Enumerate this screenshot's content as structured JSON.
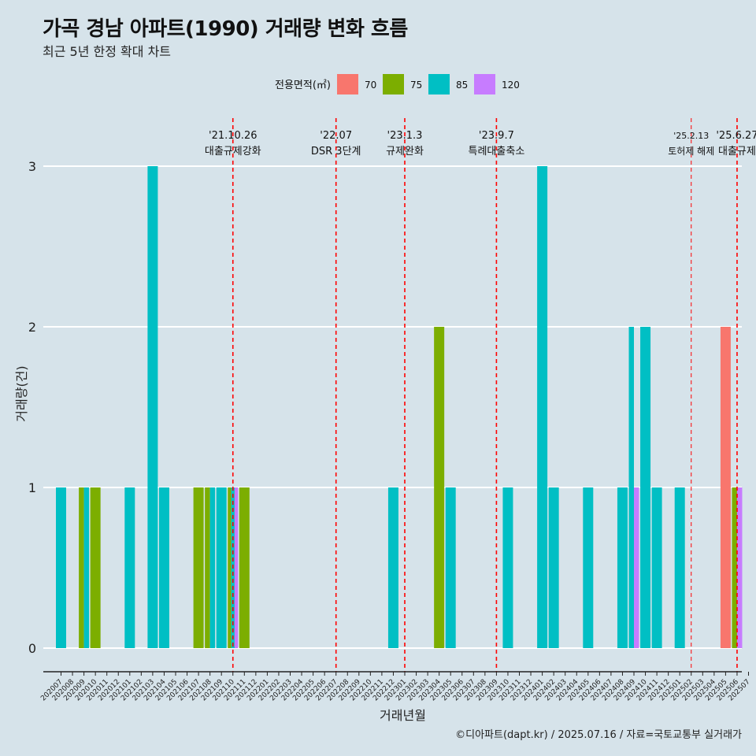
{
  "header": {
    "title": "가곡 경남 아파트(1990) 거래량 변화 흐름",
    "subtitle": "최근 5년 한정 확대 차트"
  },
  "footer": {
    "caption": "©디아파트(dapt.kr) / 2025.07.16 / 자료=국토교통부 실거래가"
  },
  "chart_data": {
    "type": "bar",
    "xlabel": "거래년월",
    "ylabel": "거래량(건)",
    "ylim": [
      0,
      3
    ],
    "yticks": [
      0,
      1,
      2,
      3
    ],
    "grid": true,
    "legend_position": "top",
    "legend": {
      "title": "전용면적(㎡)",
      "entries": [
        {
          "label": "70",
          "color": "#f8766d"
        },
        {
          "label": "75",
          "color": "#7cae00"
        },
        {
          "label": "85",
          "color": "#00bfc4"
        },
        {
          "label": "120",
          "color": "#c77cff"
        }
      ]
    },
    "categories": [
      "202007",
      "202008",
      "202009",
      "202010",
      "202011",
      "202012",
      "202101",
      "202102",
      "202103",
      "202104",
      "202105",
      "202106",
      "202107",
      "202108",
      "202109",
      "202110",
      "202111",
      "202112",
      "202201",
      "202202",
      "202203",
      "202204",
      "202205",
      "202206",
      "202207",
      "202208",
      "202209",
      "202210",
      "202211",
      "202212",
      "202301",
      "202302",
      "202303",
      "202304",
      "202305",
      "202306",
      "202307",
      "202308",
      "202309",
      "202310",
      "202311",
      "202312",
      "202401",
      "202402",
      "202403",
      "202404",
      "202405",
      "202406",
      "202407",
      "202408",
      "202409",
      "202410",
      "202411",
      "202412",
      "202501",
      "202502",
      "202503",
      "202504",
      "202505",
      "202506",
      "202507"
    ],
    "series": [
      {
        "name": "70",
        "values": [
          0,
          0,
          0,
          0,
          0,
          0,
          0,
          0,
          0,
          0,
          0,
          0,
          0,
          0,
          0,
          0,
          0,
          0,
          0,
          0,
          0,
          0,
          0,
          0,
          0,
          0,
          0,
          0,
          0,
          0,
          0,
          0,
          0,
          0,
          0,
          0,
          0,
          0,
          0,
          0,
          0,
          0,
          0,
          0,
          0,
          0,
          0,
          0,
          0,
          0,
          0,
          0,
          0,
          0,
          0,
          0,
          0,
          0,
          2,
          0,
          0
        ]
      },
      {
        "name": "75",
        "values": [
          0,
          0,
          1,
          1,
          0,
          0,
          0,
          0,
          0,
          0,
          0,
          0,
          1,
          1,
          0,
          1,
          1,
          0,
          0,
          0,
          0,
          0,
          0,
          0,
          0,
          0,
          0,
          0,
          0,
          0,
          0,
          0,
          0,
          2,
          0,
          0,
          0,
          0,
          0,
          0,
          0,
          0,
          0,
          0,
          0,
          0,
          0,
          0,
          0,
          0,
          0,
          0,
          0,
          0,
          0,
          0,
          0,
          0,
          0,
          1,
          0
        ]
      },
      {
        "name": "85",
        "values": [
          1,
          0,
          1,
          0,
          0,
          0,
          1,
          0,
          3,
          1,
          0,
          0,
          0,
          1,
          1,
          1,
          0,
          0,
          0,
          0,
          0,
          0,
          0,
          0,
          0,
          0,
          0,
          0,
          0,
          1,
          0,
          0,
          0,
          0,
          1,
          0,
          0,
          0,
          0,
          1,
          0,
          0,
          3,
          1,
          0,
          0,
          1,
          0,
          0,
          1,
          2,
          2,
          1,
          0,
          1,
          0,
          0,
          0,
          0,
          0,
          0
        ]
      },
      {
        "name": "120",
        "values": [
          0,
          0,
          0,
          0,
          0,
          0,
          0,
          0,
          0,
          0,
          0,
          0,
          0,
          0,
          0,
          1,
          0,
          0,
          0,
          0,
          0,
          0,
          0,
          0,
          0,
          0,
          0,
          0,
          0,
          0,
          0,
          0,
          0,
          0,
          0,
          0,
          0,
          0,
          0,
          0,
          0,
          0,
          0,
          0,
          0,
          0,
          0,
          0,
          0,
          0,
          1,
          0,
          0,
          0,
          0,
          0,
          0,
          0,
          0,
          1,
          0
        ]
      }
    ],
    "annotations": [
      {
        "date_label": "'21.10.26",
        "text": "대출규제강화",
        "x": "202110"
      },
      {
        "date_label": "'22.07",
        "text": "DSR 3단계",
        "x": "202207"
      },
      {
        "date_label": "'23.1.3",
        "text": "규제완화",
        "x": "202301"
      },
      {
        "date_label": "'23.9.7",
        "text": "특례대출축소",
        "x": "202309"
      },
      {
        "date_label": "'25.2.13",
        "text": "토허제 해제",
        "x": "202502"
      },
      {
        "date_label": "'25.6.27",
        "text": "대출규제",
        "x": "202506"
      }
    ]
  }
}
